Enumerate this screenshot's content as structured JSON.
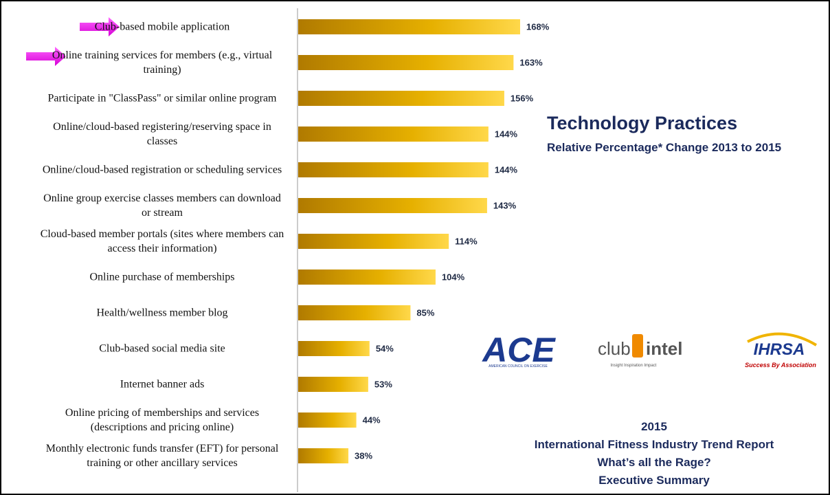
{
  "chart_data": {
    "type": "bar",
    "orientation": "horizontal",
    "title": "Technology Practices",
    "subtitle": "Relative Percentage* Change 2013 to 2015",
    "categories": [
      "Club-based mobile application",
      "Online training services for members (e.g., virtual training)",
      "Participate in \"ClassPass\" or similar online program",
      "Online/cloud-based registering/reserving space in classes",
      "Online/cloud-based registration or scheduling services",
      "Online group exercise classes members can download or stream",
      "Cloud-based member portals (sites where members can access their information)",
      "Online purchase of memberships",
      "Health/wellness member blog",
      "Club-based social media site",
      "Internet banner ads",
      "Online pricing of memberships and services (descriptions and pricing online)",
      "Monthly electronic funds transfer (EFT) for personal training or other ancillary services"
    ],
    "values": [
      168,
      163,
      156,
      144,
      144,
      143,
      114,
      104,
      85,
      54,
      53,
      44,
      38
    ],
    "value_labels": [
      "168%",
      "163%",
      "156%",
      "144%",
      "144%",
      "143%",
      "114%",
      "104%",
      "85%",
      "54%",
      "53%",
      "44%",
      "38%"
    ],
    "color": "#e8b100"
  },
  "logos": {
    "ace": {
      "name": "ACE",
      "tagline": "AMERICAN COUNCIL ON EXERCISE"
    },
    "club_intel": {
      "club": "club",
      "intel": "intel",
      "tagline": "Insight   Inspiration   Impact"
    },
    "ihrsa": {
      "name": "IHRSA",
      "tagline": "Success By Association"
    }
  },
  "footer": [
    "2015",
    "International Fitness Industry Trend Report",
    "What’s all the Rage?",
    "Executive Summary"
  ]
}
